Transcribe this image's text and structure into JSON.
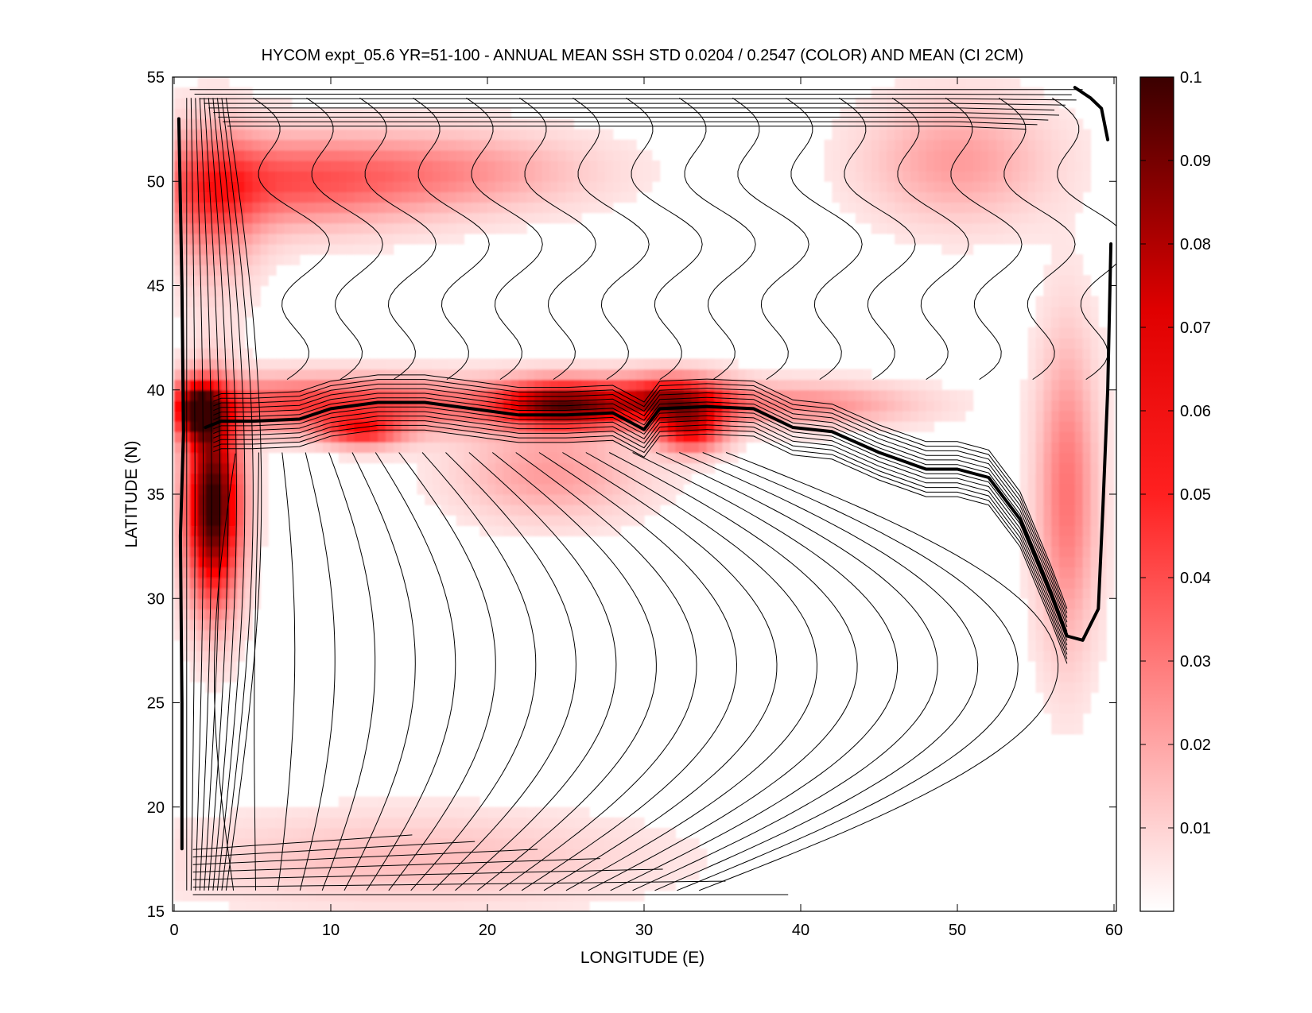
{
  "chart_data": {
    "type": "heatmap",
    "title": "HYCOM expt_05.6 YR=51-100 - ANNUAL MEAN SSH STD 0.0204 / 0.2547 (COLOR) AND MEAN (CI 2CM)",
    "xlabel": "LONGITUDE (E)",
    "ylabel": "LATITUDE (N)",
    "xlim": [
      0,
      60
    ],
    "ylim": [
      15,
      55
    ],
    "xticks": [
      0,
      10,
      20,
      30,
      40,
      50,
      60
    ],
    "yticks": [
      15,
      20,
      25,
      30,
      35,
      40,
      45,
      50,
      55
    ],
    "colorbar": {
      "min": 0,
      "max": 0.1,
      "ticks": [
        0.01,
        0.02,
        0.03,
        0.04,
        0.05,
        0.06,
        0.07,
        0.08,
        0.09,
        0.1
      ],
      "colors": [
        "#ffffff",
        "#ff0000",
        "#3a0000"
      ]
    },
    "contour_interval": "2 cm",
    "std_features": [
      {
        "lon": 2.5,
        "lat": 34.5,
        "sigma_lon": 1.2,
        "sigma_lat": 3.2,
        "value": 0.1
      },
      {
        "lon": 1.5,
        "lat": 39.0,
        "sigma_lon": 1.0,
        "sigma_lat": 1.0,
        "value": 0.07
      },
      {
        "lon": 10.0,
        "lat": 39.3,
        "sigma_lon": 8.0,
        "sigma_lat": 0.9,
        "value": 0.045
      },
      {
        "lon": 12.0,
        "lat": 38.0,
        "sigma_lon": 1.8,
        "sigma_lat": 0.5,
        "value": 0.04
      },
      {
        "lon": 25.0,
        "lat": 39.3,
        "sigma_lon": 3.0,
        "sigma_lat": 0.8,
        "value": 0.08
      },
      {
        "lon": 32.0,
        "lat": 39.5,
        "sigma_lon": 2.5,
        "sigma_lat": 0.8,
        "value": 0.07
      },
      {
        "lon": 33.0,
        "lat": 38.0,
        "sigma_lon": 1.5,
        "sigma_lat": 0.7,
        "value": 0.05
      },
      {
        "lon": 40.0,
        "lat": 39.3,
        "sigma_lon": 5.0,
        "sigma_lat": 0.7,
        "value": 0.025
      },
      {
        "lon": 7.0,
        "lat": 50.0,
        "sigma_lon": 6.0,
        "sigma_lat": 1.5,
        "value": 0.035
      },
      {
        "lon": 2.5,
        "lat": 49.0,
        "sigma_lon": 2.0,
        "sigma_lat": 2.5,
        "value": 0.03
      },
      {
        "lon": 18.0,
        "lat": 50.5,
        "sigma_lon": 6.0,
        "sigma_lat": 1.3,
        "value": 0.02
      },
      {
        "lon": 50.0,
        "lat": 51.0,
        "sigma_lon": 4.0,
        "sigma_lat": 2.0,
        "value": 0.02
      },
      {
        "lon": 57.0,
        "lat": 35.0,
        "sigma_lon": 1.3,
        "sigma_lat": 5.0,
        "value": 0.03
      },
      {
        "lon": 15.0,
        "lat": 17.5,
        "sigma_lon": 10.0,
        "sigma_lat": 1.5,
        "value": 0.012
      },
      {
        "lon": 24.0,
        "lat": 36.0,
        "sigma_lon": 4.0,
        "sigma_lat": 1.5,
        "value": 0.02
      }
    ],
    "zero_contour": [
      {
        "lon": 2.0,
        "lat": 38.2
      },
      {
        "lon": 3.0,
        "lat": 38.5
      },
      {
        "lon": 5.0,
        "lat": 38.5
      },
      {
        "lon": 8.0,
        "lat": 38.6
      },
      {
        "lon": 10.0,
        "lat": 39.1
      },
      {
        "lon": 13.0,
        "lat": 39.4
      },
      {
        "lon": 16.0,
        "lat": 39.4
      },
      {
        "lon": 19.0,
        "lat": 39.1
      },
      {
        "lon": 22.0,
        "lat": 38.8
      },
      {
        "lon": 25.0,
        "lat": 38.8
      },
      {
        "lon": 28.0,
        "lat": 38.9
      },
      {
        "lon": 30.0,
        "lat": 38.1
      },
      {
        "lon": 31.0,
        "lat": 39.1
      },
      {
        "lon": 34.0,
        "lat": 39.2
      },
      {
        "lon": 37.0,
        "lat": 39.1
      },
      {
        "lon": 39.5,
        "lat": 38.2
      },
      {
        "lon": 42.0,
        "lat": 38.0
      },
      {
        "lon": 45.0,
        "lat": 37.0
      },
      {
        "lon": 48.0,
        "lat": 36.2
      },
      {
        "lon": 50.0,
        "lat": 36.2
      },
      {
        "lon": 52.0,
        "lat": 35.8
      },
      {
        "lon": 54.0,
        "lat": 33.8
      },
      {
        "lon": 56.0,
        "lat": 30.2
      },
      {
        "lon": 57.0,
        "lat": 28.2
      },
      {
        "lon": 58.0,
        "lat": 28.0
      },
      {
        "lon": 59.0,
        "lat": 29.5
      },
      {
        "lon": 59.3,
        "lat": 34.5
      },
      {
        "lon": 59.6,
        "lat": 40.0
      },
      {
        "lon": 59.8,
        "lat": 47.0
      }
    ],
    "western_boundary_contour": [
      {
        "lon": 0.3,
        "lat": 53.0
      },
      {
        "lon": 0.5,
        "lat": 45.0
      },
      {
        "lon": 0.6,
        "lat": 38.0
      },
      {
        "lon": 0.4,
        "lat": 33.0
      },
      {
        "lon": 0.5,
        "lat": 25.0
      },
      {
        "lon": 0.5,
        "lat": 18.0
      }
    ],
    "northeast_contour": [
      {
        "lon": 57.5,
        "lat": 54.5
      },
      {
        "lon": 58.5,
        "lat": 54.0
      },
      {
        "lon": 59.2,
        "lat": 53.5
      },
      {
        "lon": 59.6,
        "lat": 52.0
      }
    ]
  }
}
